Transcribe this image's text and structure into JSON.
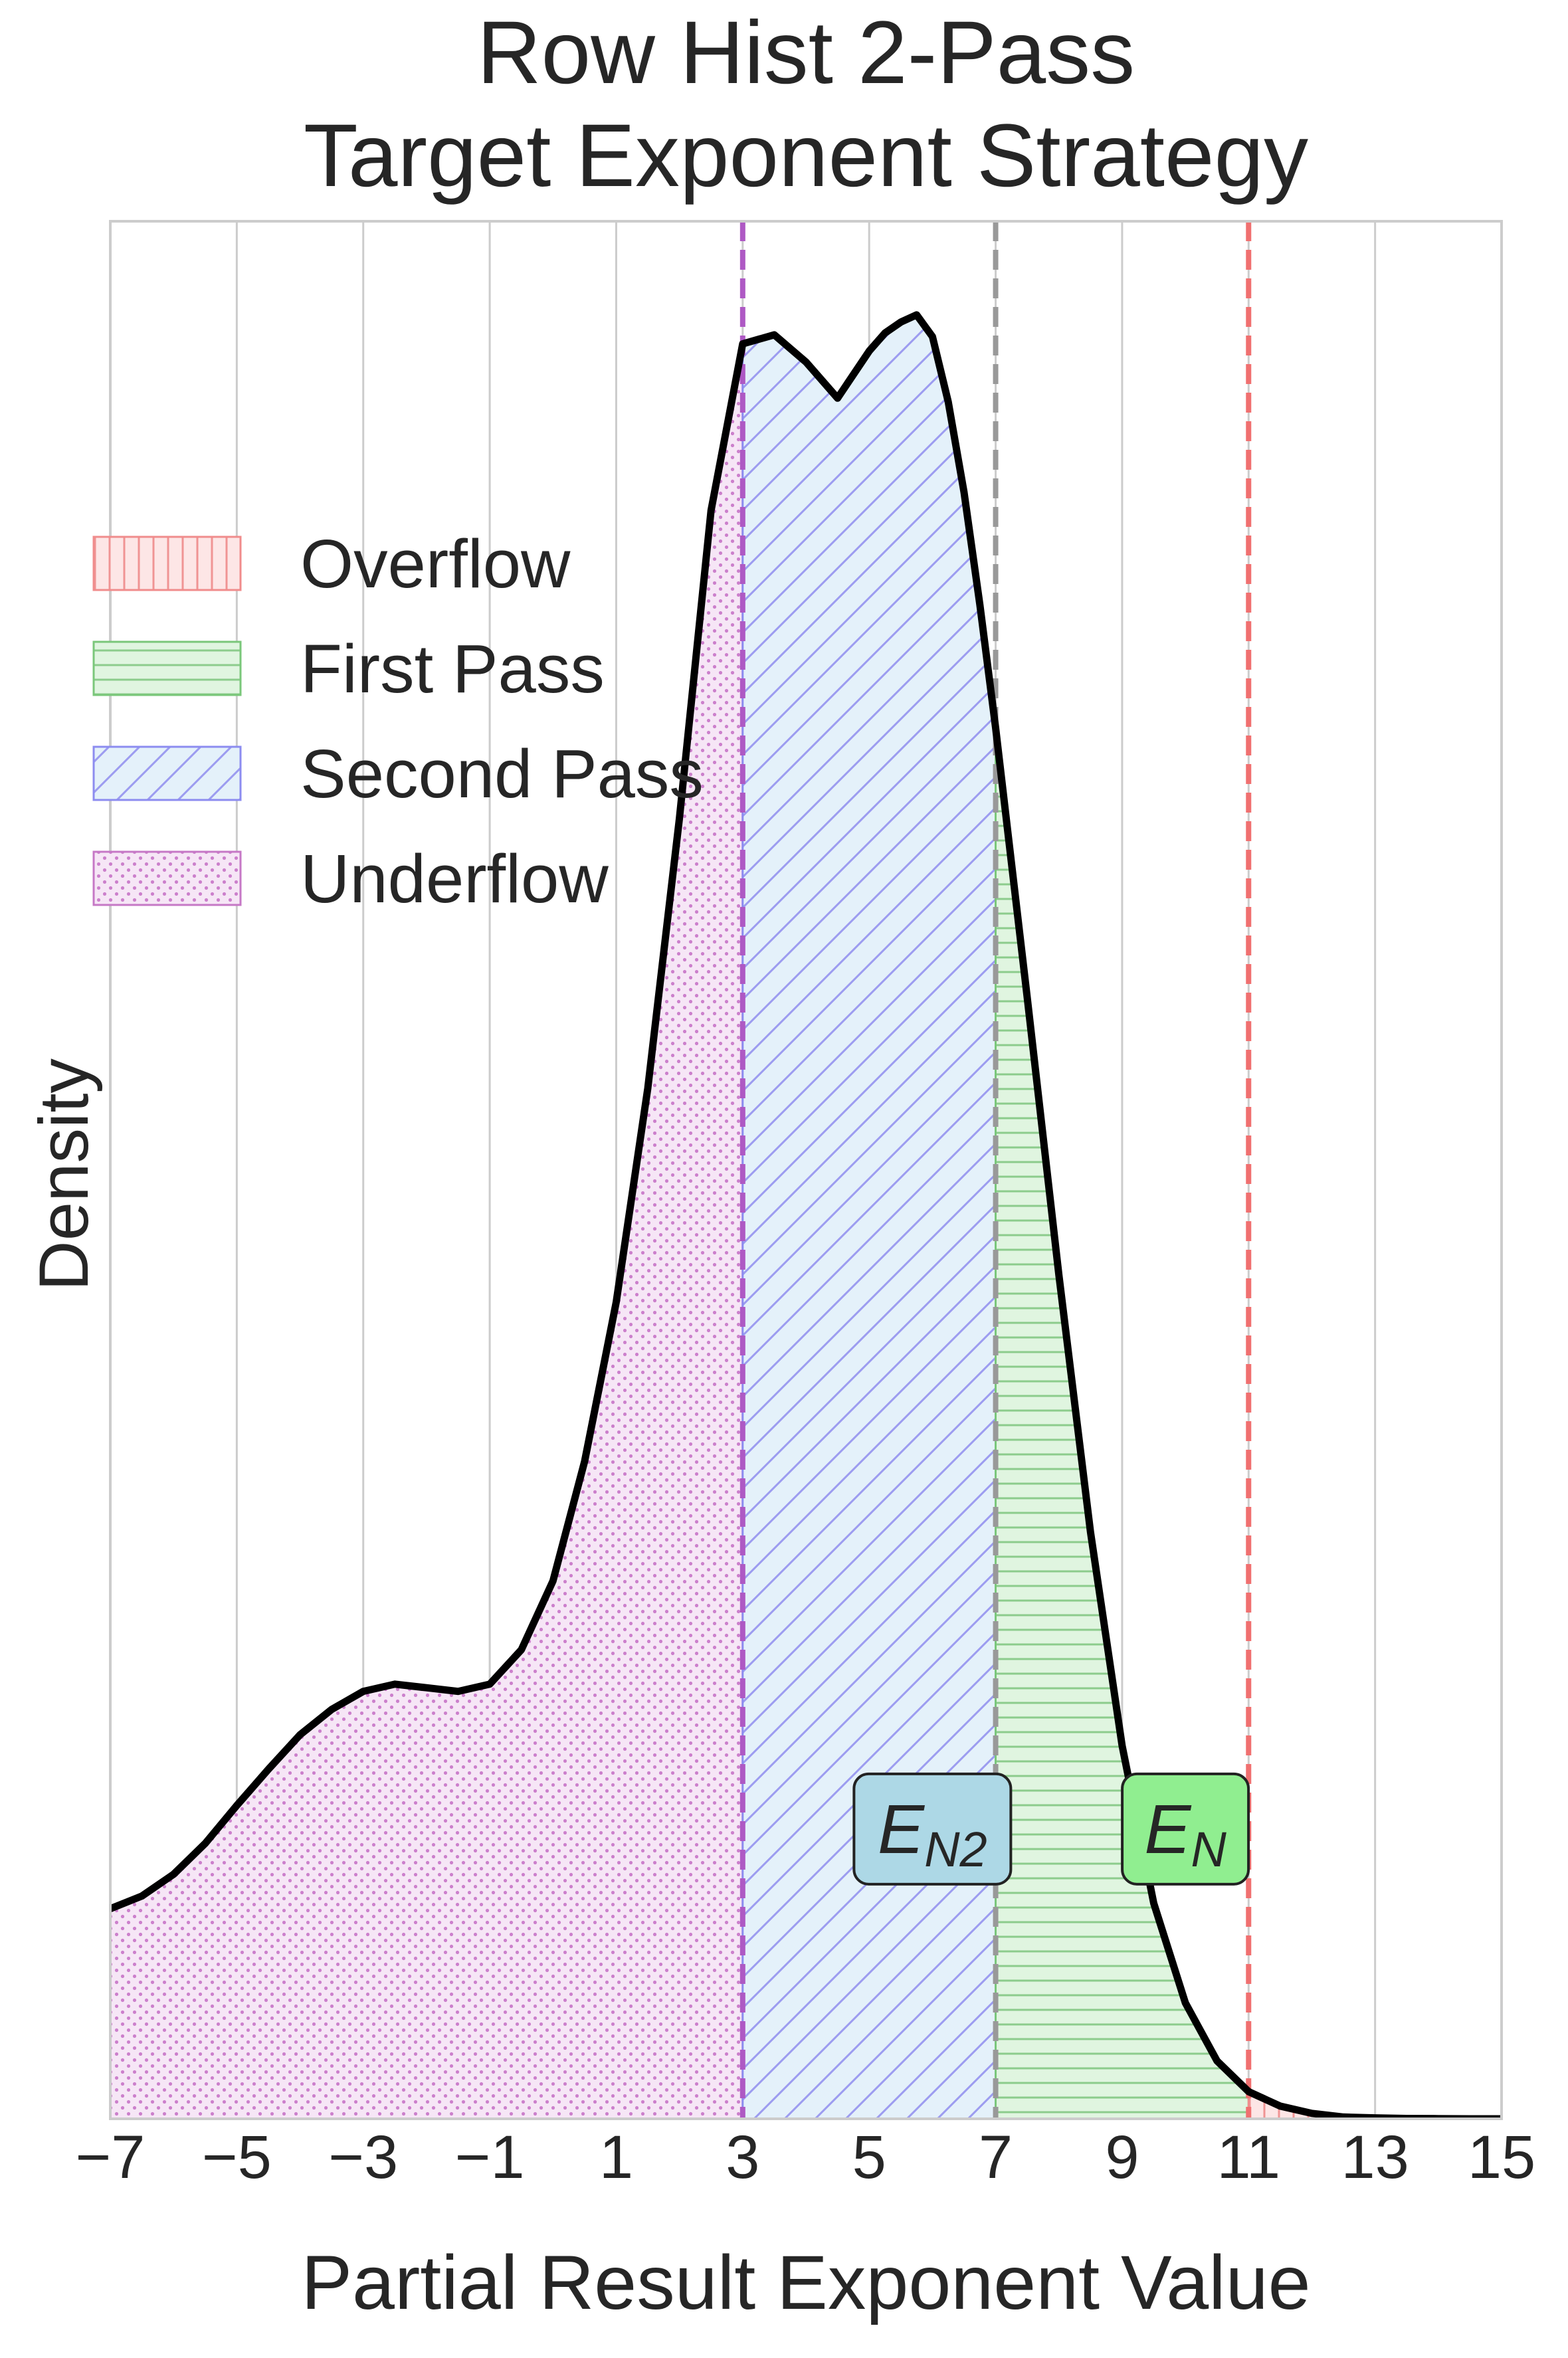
{
  "chart_data": {
    "type": "area",
    "title": "Row Hist 2-Pass\nTarget Exponent Strategy",
    "title_lines": [
      "Row Hist 2-Pass",
      "Target Exponent Strategy"
    ],
    "xlabel": "Partial Result Exponent Value",
    "ylabel": "Density",
    "xlim": [
      -7,
      15
    ],
    "ylim": [
      0,
      1.0
    ],
    "xticks": [
      -7,
      -5,
      -3,
      -1,
      1,
      3,
      5,
      7,
      9,
      11,
      13,
      15
    ],
    "xtick_labels": [
      "−7",
      "−5",
      "−3",
      "−1",
      "1",
      "3",
      "5",
      "7",
      "9",
      "11",
      "13",
      "15"
    ],
    "grid": "vertical",
    "legend_position": "upper-left",
    "curve": {
      "x": [
        -7,
        -6.5,
        -6,
        -5.5,
        -5,
        -4.5,
        -4,
        -3.5,
        -3,
        -2.5,
        -2,
        -1.5,
        -1,
        -0.5,
        0,
        0.5,
        1,
        1.5,
        2,
        2.5,
        3,
        3.5,
        4,
        4.5,
        5,
        5.25,
        5.5,
        5.75,
        6,
        6.25,
        6.5,
        6.75,
        7,
        7.5,
        8,
        8.5,
        9,
        9.5,
        10,
        10.5,
        11,
        11.5,
        12,
        12.5,
        13,
        13.5,
        14,
        14.5,
        15
      ],
      "y": [
        0.116,
        0.123,
        0.135,
        0.152,
        0.173,
        0.193,
        0.212,
        0.226,
        0.236,
        0.24,
        0.238,
        0.236,
        0.24,
        0.259,
        0.297,
        0.363,
        0.451,
        0.569,
        0.718,
        0.888,
        0.98,
        0.985,
        0.97,
        0.95,
        0.976,
        0.986,
        0.992,
        0.996,
        0.984,
        0.948,
        0.898,
        0.836,
        0.768,
        0.619,
        0.466,
        0.324,
        0.206,
        0.119,
        0.064,
        0.032,
        0.015,
        0.007,
        0.003,
        0.001,
        0.0005,
        0.0002,
        0.0001,
        0.0,
        0.0
      ]
    },
    "regions": [
      {
        "name": "Underflow",
        "from": -7,
        "to": 3,
        "color": "#c678c6",
        "fill": "#f5e1f5",
        "pattern": "dots"
      },
      {
        "name": "Second Pass",
        "from": 3,
        "to": 7,
        "color": "#8c8cf0",
        "fill": "#e3f0fa",
        "pattern": "diagonal"
      },
      {
        "name": "First Pass",
        "from": 7,
        "to": 11,
        "color": "#7ac77a",
        "fill": "#dff5df",
        "pattern": "horizontal"
      },
      {
        "name": "Overflow",
        "from": 11,
        "to": 15,
        "color": "#f08c8c",
        "fill": "#fde3e3",
        "pattern": "vertical"
      }
    ],
    "legend": [
      "Overflow",
      "First Pass",
      "Second Pass",
      "Underflow"
    ],
    "vlines": [
      {
        "x": 3,
        "color": "#ae59c4",
        "style": "dashed"
      },
      {
        "x": 7,
        "color": "#999999",
        "style": "dashed"
      },
      {
        "x": 11,
        "color": "#f07070",
        "style": "dashed"
      }
    ],
    "annotations": [
      {
        "label": "E",
        "subscript": "N2",
        "x": 6,
        "y": 0.16,
        "color": "#add8e6"
      },
      {
        "label": "E",
        "subscript": "N",
        "x": 10,
        "y": 0.16,
        "color": "#90ee90"
      }
    ]
  }
}
